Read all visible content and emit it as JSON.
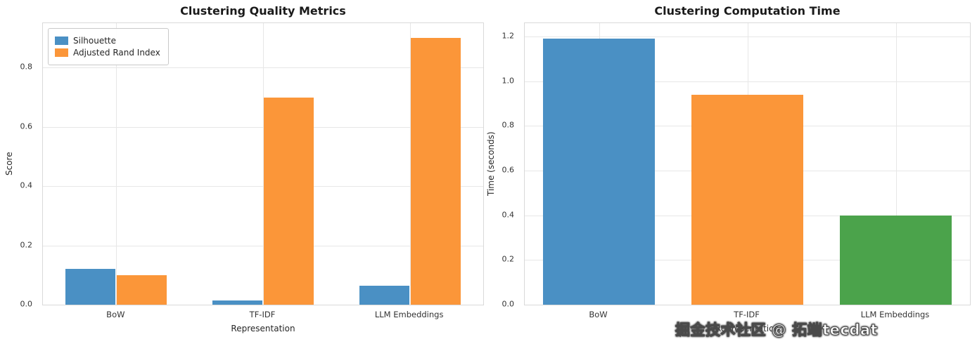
{
  "watermark": {
    "text": "掘金技术社区 @ 拓端tecdat"
  },
  "chart_data": [
    {
      "type": "bar",
      "title": "Clustering Quality Metrics",
      "xlabel": "Representation",
      "ylabel": "Score",
      "categories": [
        "BoW",
        "TF-IDF",
        "LLM Embeddings"
      ],
      "series": [
        {
          "name": "Silhouette",
          "color": "#4a90c4",
          "values": [
            0.12,
            0.015,
            0.065
          ]
        },
        {
          "name": "Adjusted Rand Index",
          "color": "#fb9639",
          "values": [
            0.1,
            0.7,
            0.9
          ]
        }
      ],
      "ylim": [
        0,
        0.95
      ],
      "yticks": [
        0.0,
        0.2,
        0.4,
        0.6,
        0.8
      ],
      "grid": true,
      "legend": true,
      "legend_position": "upper left"
    },
    {
      "type": "bar",
      "title": "Clustering Computation Time",
      "xlabel": "Representation",
      "ylabel": "Time (seconds)",
      "categories": [
        "BoW",
        "TF-IDF",
        "LLM Embeddings"
      ],
      "series": [
        {
          "name": "Time",
          "colors": [
            "#4a90c4",
            "#fb9639",
            "#4ba34b"
          ],
          "values": [
            1.19,
            0.94,
            0.4
          ]
        }
      ],
      "ylim": [
        0,
        1.26
      ],
      "yticks": [
        0.0,
        0.2,
        0.4,
        0.6,
        0.8,
        1.0,
        1.2
      ],
      "grid": true,
      "legend": false
    }
  ]
}
